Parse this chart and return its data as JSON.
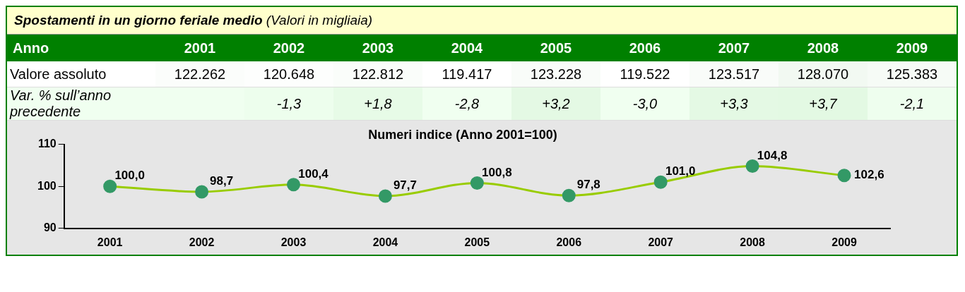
{
  "chart_data": [
    {
      "type": "heatmap",
      "title": "Spostamenti in un giorno feriale medio",
      "subtitle": "(Valori in migliaia)",
      "xlabel": "Anno",
      "categories": [
        "2001",
        "2002",
        "2003",
        "2004",
        "2005",
        "2006",
        "2007",
        "2008",
        "2009"
      ],
      "y_categories": [
        "Valore assoluto",
        "Var. % sull’anno precedente"
      ],
      "cells": [
        [
          122262,
          120648,
          122812,
          119417,
          123228,
          119522,
          123517,
          128070,
          125383
        ],
        [
          null,
          -1.3,
          1.8,
          -2.8,
          3.2,
          -3.0,
          3.3,
          3.7,
          -2.1
        ]
      ],
      "cell_labels": [
        [
          "122.262",
          "120.648",
          "122.812",
          "119.417",
          "123.228",
          "119.522",
          "123.517",
          "128.070",
          "125.383"
        ],
        [
          null,
          "-1,3",
          "+1,8",
          "-2,8",
          "+3,2",
          "-3,0",
          "+3,3",
          "+3,7",
          "-2,1"
        ]
      ]
    },
    {
      "type": "line",
      "title": "Numeri indice (Anno 2001=100)",
      "categories": [
        "2001",
        "2002",
        "2003",
        "2004",
        "2005",
        "2006",
        "2007",
        "2008",
        "2009"
      ],
      "series": [
        {
          "color": "#99cc00",
          "values": [
            100.0,
            98.7,
            100.4,
            97.7,
            100.8,
            97.8,
            101.0,
            104.8,
            102.6
          ],
          "value_labels": [
            "100,0",
            "98,7",
            "100,4",
            "97,7",
            "100,8",
            "97,8",
            "101,0",
            "104,8",
            "102,6"
          ]
        }
      ],
      "ylim": [
        90,
        110
      ],
      "yticks": [
        90,
        100,
        110
      ],
      "marker": "circle",
      "legend": false,
      "grid": false
    }
  ]
}
